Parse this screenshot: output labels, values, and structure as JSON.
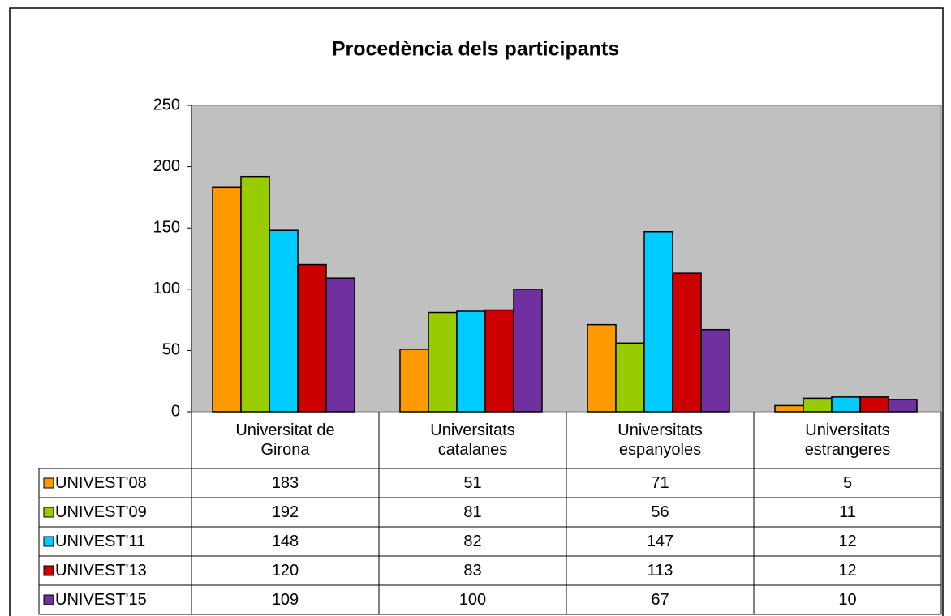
{
  "chart_data": {
    "type": "bar",
    "title": "Procedència dels participants",
    "categories": [
      "Universitat de Girona",
      "Universitats catalanes",
      "Universitats espanyoles",
      "Universitats estrangeres"
    ],
    "series": [
      {
        "name": "UNIVEST'08",
        "color": "#FF9900",
        "values": [
          183,
          51,
          71,
          5
        ]
      },
      {
        "name": "UNIVEST'09",
        "color": "#99CC00",
        "values": [
          192,
          81,
          56,
          11
        ]
      },
      {
        "name": "UNIVEST'11",
        "color": "#00CCFF",
        "values": [
          148,
          82,
          147,
          12
        ]
      },
      {
        "name": "UNIVEST'13",
        "color": "#CC0000",
        "values": [
          120,
          83,
          113,
          12
        ]
      },
      {
        "name": "UNIVEST'15",
        "color": "#7030A0",
        "values": [
          109,
          100,
          67,
          10
        ]
      }
    ],
    "ylim": [
      0,
      250
    ],
    "yticks": [
      0,
      50,
      100,
      150,
      200,
      250
    ],
    "grid": false
  }
}
